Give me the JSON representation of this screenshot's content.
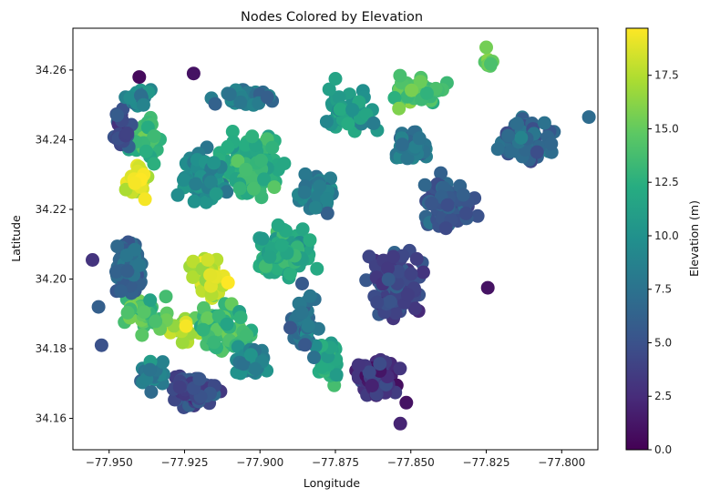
{
  "chart_data": {
    "type": "scatter",
    "title": "Nodes Colored by Elevation",
    "xlabel": "Longitude",
    "ylabel": "Latitude",
    "xlim": [
      -77.962,
      -77.788
    ],
    "ylim": [
      34.151,
      34.272
    ],
    "x_ticks": [
      -77.95,
      -77.925,
      -77.9,
      -77.875,
      -77.85,
      -77.825,
      -77.8
    ],
    "x_tick_labels": [
      "−77.950",
      "−77.925",
      "−77.900",
      "−77.875",
      "−77.850",
      "−77.825",
      "−77.800"
    ],
    "y_ticks": [
      34.16,
      34.18,
      34.2,
      34.22,
      34.24,
      34.26
    ],
    "y_tick_labels": [
      "34.16",
      "34.18",
      "34.20",
      "34.22",
      "34.24",
      "34.26"
    ],
    "grid": false,
    "legend": "none",
    "colorbar": {
      "label": "Elevation (m)",
      "cmap": "viridis",
      "range": [
        0,
        19.7
      ],
      "ticks": [
        0,
        2.5,
        5,
        7.5,
        10,
        12.5,
        15,
        17.5
      ],
      "tick_labels": [
        "0.0",
        "2.5",
        "5.0",
        "7.5",
        "10.0",
        "12.5",
        "15.0",
        "17.5"
      ]
    },
    "regions": [
      {
        "lon": -77.941,
        "lat": 34.228,
        "elev": 18.5,
        "n": 30,
        "spread": [
          0.005,
          0.008
        ]
      },
      {
        "lon": -77.917,
        "lat": 34.2,
        "elev": 18.0,
        "n": 40,
        "spread": [
          0.008,
          0.008
        ]
      },
      {
        "lon": -77.924,
        "lat": 34.186,
        "elev": 17.0,
        "n": 20,
        "spread": [
          0.006,
          0.005
        ]
      },
      {
        "lon": -77.938,
        "lat": 34.19,
        "elev": 14.0,
        "n": 40,
        "spread": [
          0.01,
          0.008
        ]
      },
      {
        "lon": -77.937,
        "lat": 34.24,
        "elev": 13.0,
        "n": 40,
        "spread": [
          0.008,
          0.008
        ]
      },
      {
        "lon": -77.902,
        "lat": 34.232,
        "elev": 12.5,
        "n": 120,
        "spread": [
          0.014,
          0.012
        ]
      },
      {
        "lon": -77.892,
        "lat": 34.207,
        "elev": 12.0,
        "n": 120,
        "spread": [
          0.013,
          0.01
        ]
      },
      {
        "lon": -77.912,
        "lat": 34.187,
        "elev": 13.5,
        "n": 70,
        "spread": [
          0.011,
          0.009
        ]
      },
      {
        "lon": -77.877,
        "lat": 34.176,
        "elev": 12.0,
        "n": 50,
        "spread": [
          0.004,
          0.01
        ]
      },
      {
        "lon": -77.848,
        "lat": 34.254,
        "elev": 14.0,
        "n": 40,
        "spread": [
          0.012,
          0.006
        ]
      },
      {
        "lon": -77.824,
        "lat": 34.262,
        "elev": 15.0,
        "n": 10,
        "spread": [
          0.002,
          0.002
        ]
      },
      {
        "lon": -77.87,
        "lat": 34.248,
        "elev": 10.5,
        "n": 60,
        "spread": [
          0.012,
          0.008
        ]
      },
      {
        "lon": -77.812,
        "lat": 34.24,
        "elev": 6.5,
        "n": 80,
        "spread": [
          0.012,
          0.008
        ]
      },
      {
        "lon": -77.838,
        "lat": 34.222,
        "elev": 6.0,
        "n": 80,
        "spread": [
          0.012,
          0.01
        ]
      },
      {
        "lon": -77.855,
        "lat": 34.196,
        "elev": 4.5,
        "n": 120,
        "spread": [
          0.012,
          0.014
        ]
      },
      {
        "lon": -77.861,
        "lat": 34.172,
        "elev": 3.0,
        "n": 70,
        "spread": [
          0.009,
          0.008
        ]
      },
      {
        "lon": -77.922,
        "lat": 34.168,
        "elev": 4.5,
        "n": 90,
        "spread": [
          0.011,
          0.006
        ]
      },
      {
        "lon": -77.943,
        "lat": 34.204,
        "elev": 6.5,
        "n": 60,
        "spread": [
          0.007,
          0.012
        ]
      },
      {
        "lon": -77.946,
        "lat": 34.243,
        "elev": 4.5,
        "n": 30,
        "spread": [
          0.004,
          0.009
        ]
      },
      {
        "lon": -77.94,
        "lat": 34.252,
        "elev": 9.0,
        "n": 25,
        "spread": [
          0.006,
          0.004
        ]
      },
      {
        "lon": -77.919,
        "lat": 34.229,
        "elev": 9.5,
        "n": 70,
        "spread": [
          0.011,
          0.01
        ]
      },
      {
        "lon": -77.881,
        "lat": 34.225,
        "elev": 8.0,
        "n": 60,
        "spread": [
          0.008,
          0.008
        ]
      },
      {
        "lon": -77.886,
        "lat": 34.188,
        "elev": 7.5,
        "n": 50,
        "spread": [
          0.006,
          0.012
        ]
      },
      {
        "lon": -77.903,
        "lat": 34.176,
        "elev": 9.0,
        "n": 40,
        "spread": [
          0.007,
          0.006
        ]
      },
      {
        "lon": -77.936,
        "lat": 34.172,
        "elev": 8.5,
        "n": 30,
        "spread": [
          0.006,
          0.006
        ]
      },
      {
        "lon": -77.905,
        "lat": 34.252,
        "elev": 8.0,
        "n": 40,
        "spread": [
          0.012,
          0.004
        ]
      },
      {
        "lon": -77.85,
        "lat": 34.238,
        "elev": 8.0,
        "n": 40,
        "spread": [
          0.008,
          0.006
        ]
      }
    ],
    "point_samples": [
      {
        "lon": -77.9535,
        "lat": 34.192,
        "elev": 6.0
      },
      {
        "lon": -77.9525,
        "lat": 34.181,
        "elev": 5.0
      },
      {
        "lon": -77.9555,
        "lat": 34.2055,
        "elev": 3.0
      },
      {
        "lon": -77.94,
        "lat": 34.258,
        "elev": 0.5
      },
      {
        "lon": -77.922,
        "lat": 34.259,
        "elev": 1.0
      },
      {
        "lon": -77.825,
        "lat": 34.2665,
        "elev": 15.5
      },
      {
        "lon": -77.791,
        "lat": 34.2465,
        "elev": 7.0
      },
      {
        "lon": -77.8535,
        "lat": 34.1585,
        "elev": 2.0
      },
      {
        "lon": -77.8515,
        "lat": 34.1645,
        "elev": 1.0
      },
      {
        "lon": -77.875,
        "lat": 34.2575,
        "elev": 11.5
      },
      {
        "lon": -77.8245,
        "lat": 34.1975,
        "elev": 1.0
      },
      {
        "lon": -77.9245,
        "lat": 34.1865,
        "elev": 19.5
      },
      {
        "lon": -77.9415,
        "lat": 34.2275,
        "elev": 19.5
      }
    ]
  }
}
